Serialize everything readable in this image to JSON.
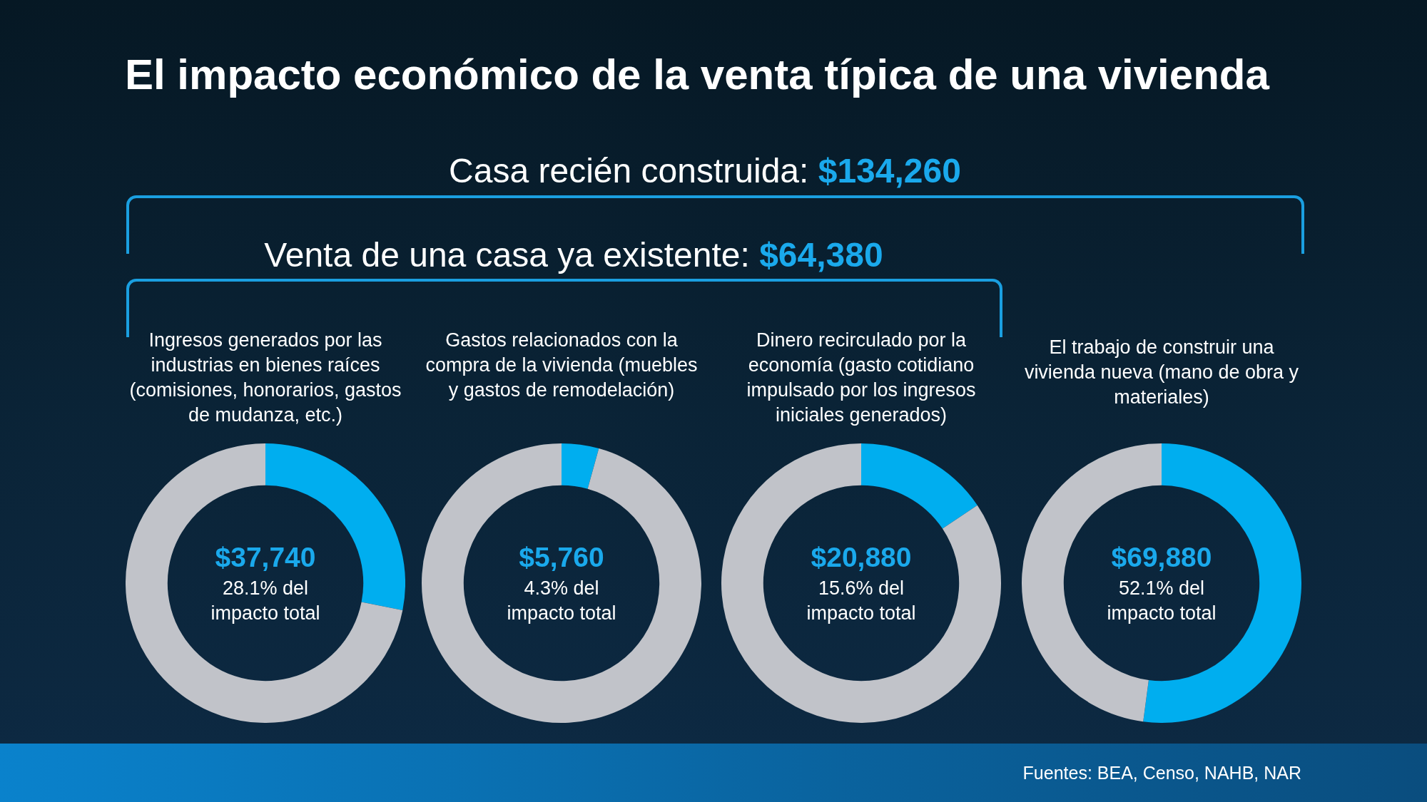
{
  "chart_data": [
    {
      "type": "other",
      "title": "El impacto económico de la venta típica de una vivienda",
      "annotations": [
        "Casa recién construida:",
        "$134,260",
        "Venta de una casa ya existente:",
        "$64,380",
        "Fuentes: BEA, Censo, NAHB, NAR"
      ]
    },
    {
      "type": "donut",
      "title": "Ingresos generados por las industrias en bienes raíces (comisiones, honorarios, gastos de mudanza, etc.)",
      "categories": [
        null,
        null
      ],
      "values": [
        28.1,
        71.9
      ],
      "colors": [
        "#00aeef",
        "#c1c3c9"
      ],
      "annotations": [
        "$37,740",
        "28.1% del impacto total"
      ]
    },
    {
      "type": "donut",
      "title": "Gastos relacionados con la compra de la vivienda (muebles y gastos de remodelación)",
      "categories": [
        null,
        null
      ],
      "values": [
        4.3,
        95.7
      ],
      "colors": [
        "#00aeef",
        "#c1c3c9"
      ],
      "annotations": [
        "$5,760",
        "4.3% del impacto total"
      ]
    },
    {
      "type": "donut",
      "title": "Dinero recirculado por la economía (gasto cotidiano impulsado por los ingresos iniciales generados)",
      "categories": [
        null,
        null
      ],
      "values": [
        15.6,
        84.4
      ],
      "colors": [
        "#00aeef",
        "#c1c3c9"
      ],
      "annotations": [
        "$20,880",
        "15.6% del impacto total"
      ]
    },
    {
      "type": "donut",
      "title": "El trabajo de construir una vivienda nueva (mano de obra y materiales)",
      "categories": [
        null,
        null
      ],
      "values": [
        52.1,
        47.9
      ],
      "colors": [
        "#00aeef",
        "#c1c3c9"
      ],
      "annotations": [
        "$69,880",
        "52.1% del impacto total"
      ]
    }
  ]
}
